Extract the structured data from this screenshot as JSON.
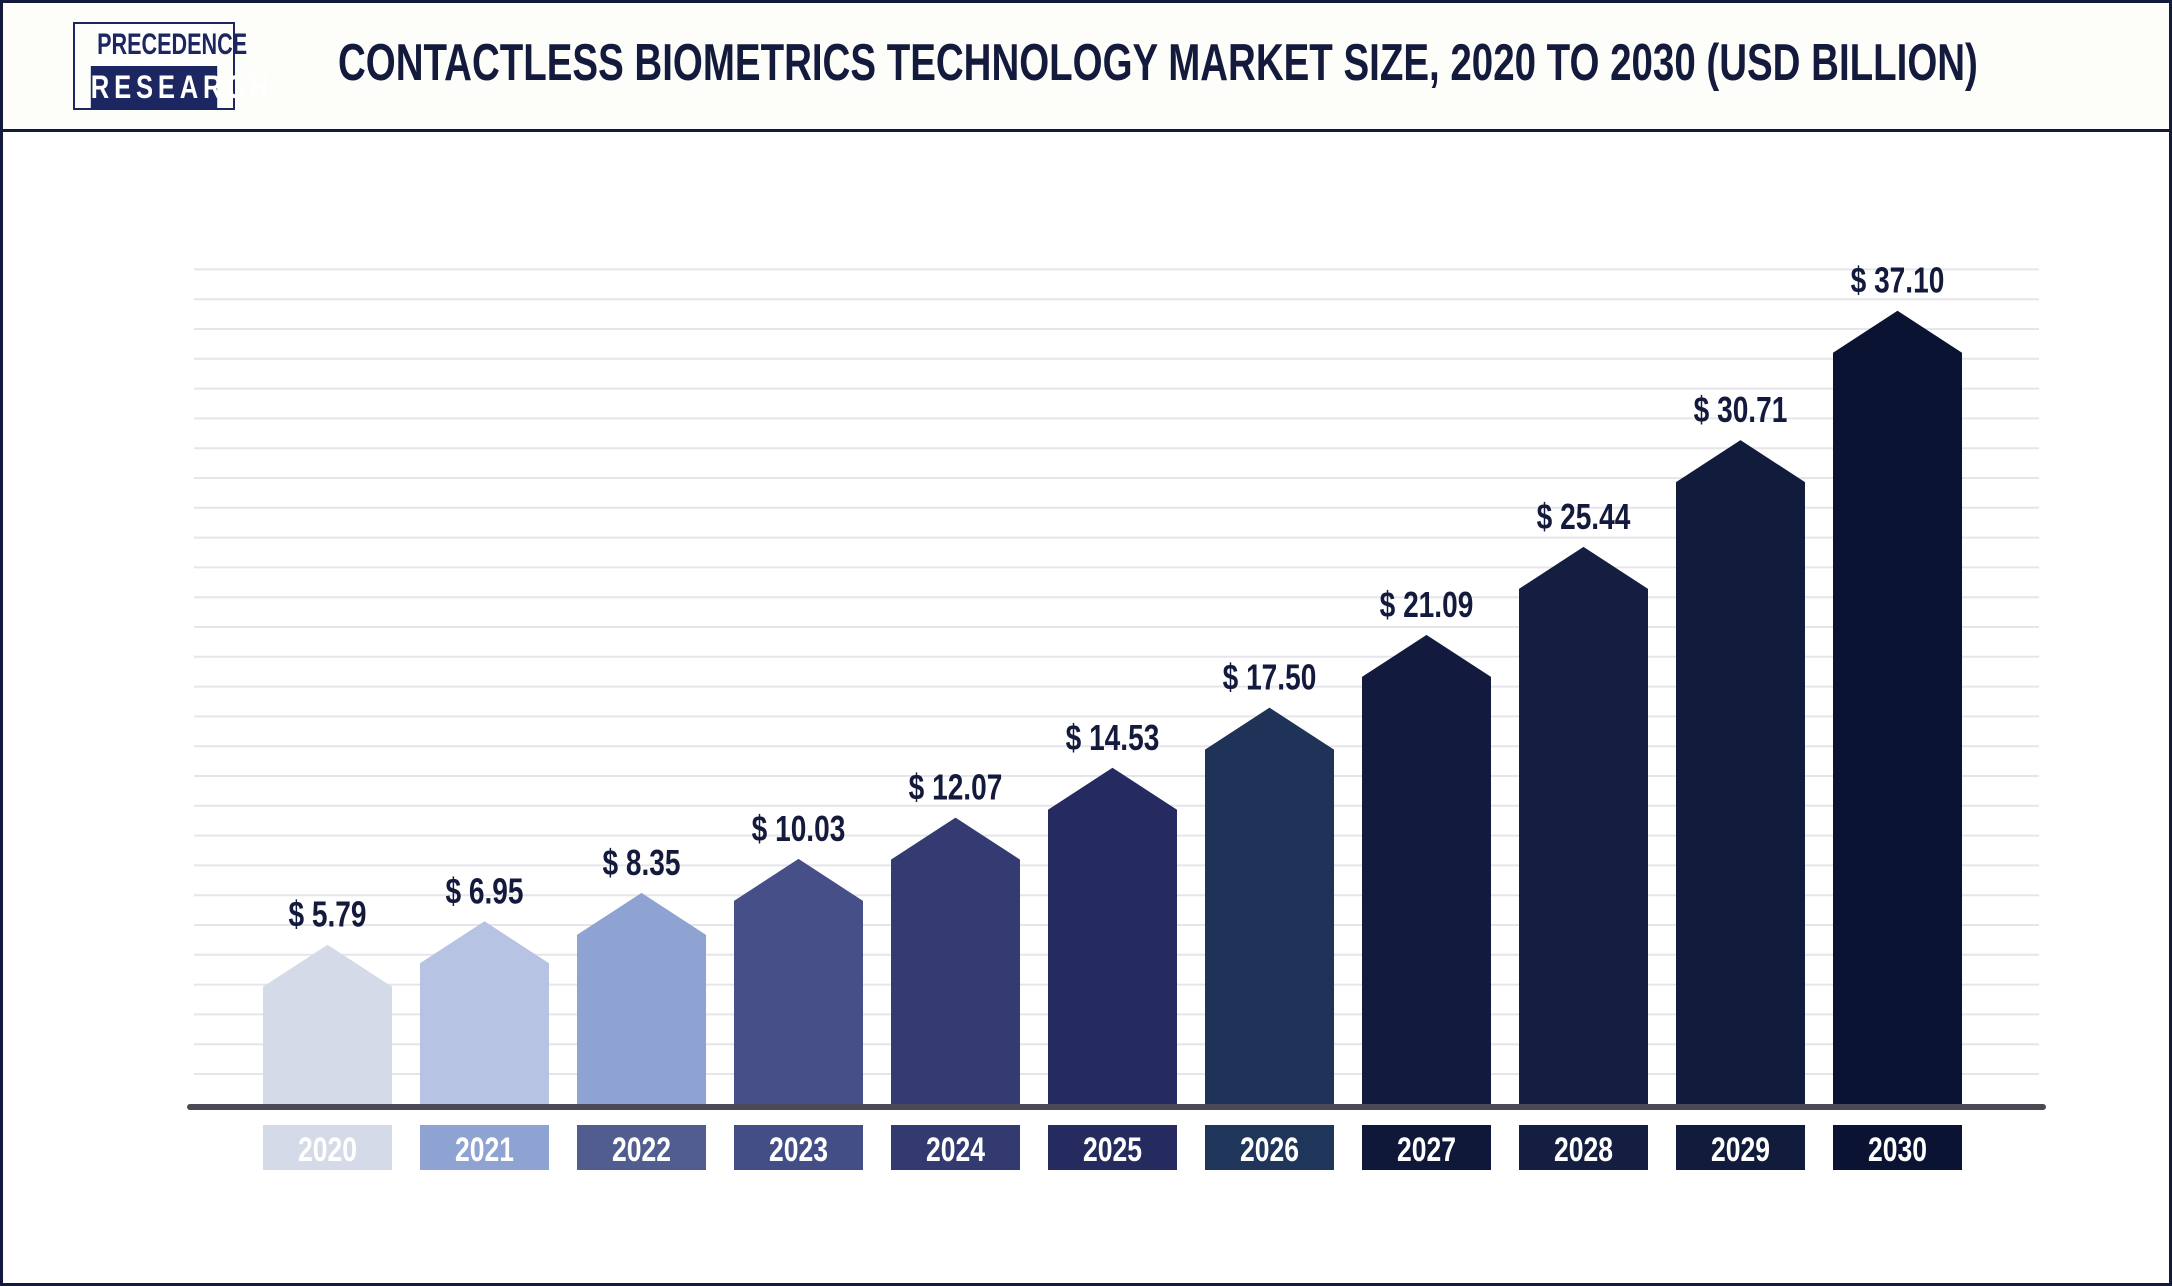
{
  "logo": {
    "line1": "PRECEDENCE",
    "line2": "RESEARCH"
  },
  "chart_data": {
    "type": "bar",
    "title": "CONTACTLESS BIOMETRICS TECHNOLOGY MARKET SIZE, 2020 TO 2030 (USD BILLION)",
    "categories": [
      "2020",
      "2021",
      "2022",
      "2023",
      "2024",
      "2025",
      "2026",
      "2027",
      "2028",
      "2029",
      "2030"
    ],
    "values": [
      5.79,
      6.95,
      8.35,
      10.03,
      12.07,
      14.53,
      17.5,
      21.09,
      25.44,
      30.71,
      37.1
    ],
    "data_labels": [
      "$ 5.79",
      "$ 6.95",
      "$ 8.35",
      "$ 10.03",
      "$ 12.07",
      "$ 14.53",
      "$ 17.50",
      "$ 21.09",
      "$ 25.44",
      "$ 30.71",
      "$ 37.10"
    ],
    "bar_colors": [
      "#d5dae8",
      "#b7c3e2",
      "#8fa3d2",
      "#464f88",
      "#333b72",
      "#252b61",
      "#1f3359",
      "#121b3d",
      "#141e40",
      "#111c3c",
      "#0b1333"
    ],
    "label_colors": [
      "#d5dae8",
      "#8fa3d2",
      "#515d8f",
      "#434d86",
      "#323a70",
      "#252b5e",
      "#20355a",
      "#0f1838",
      "#141e40",
      "#111c3c",
      "#0b1333"
    ],
    "grid": true,
    "legend": "none"
  }
}
